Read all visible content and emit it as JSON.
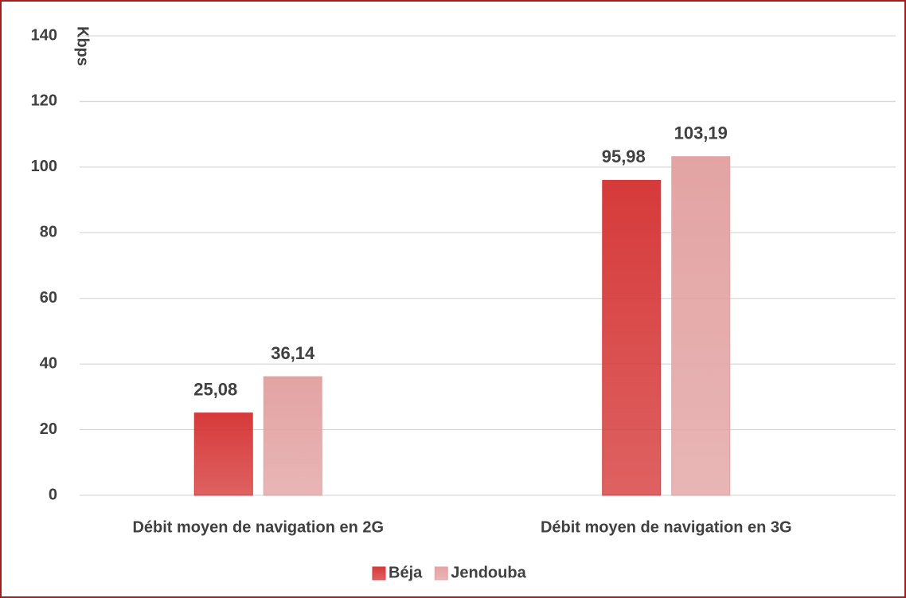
{
  "chart_data": {
    "type": "bar",
    "y_label": "Kbps",
    "categories": [
      "Débit moyen de navigation en 2G",
      "Débit moyen de navigation en 3G"
    ],
    "series": [
      {
        "name": "Béja",
        "color": "#d63a3a",
        "values": [
          25.08,
          95.98
        ],
        "value_labels": [
          "25,08",
          "95,98"
        ]
      },
      {
        "name": "Jendouba",
        "color": "#e3a3a3",
        "values": [
          36.14,
          103.19
        ],
        "value_labels": [
          "36,14",
          "103,19"
        ]
      }
    ],
    "ylim": [
      0,
      140
    ],
    "yticks": [
      0,
      20,
      40,
      60,
      80,
      100,
      120,
      140
    ],
    "grid": true,
    "legend": "bottom"
  }
}
